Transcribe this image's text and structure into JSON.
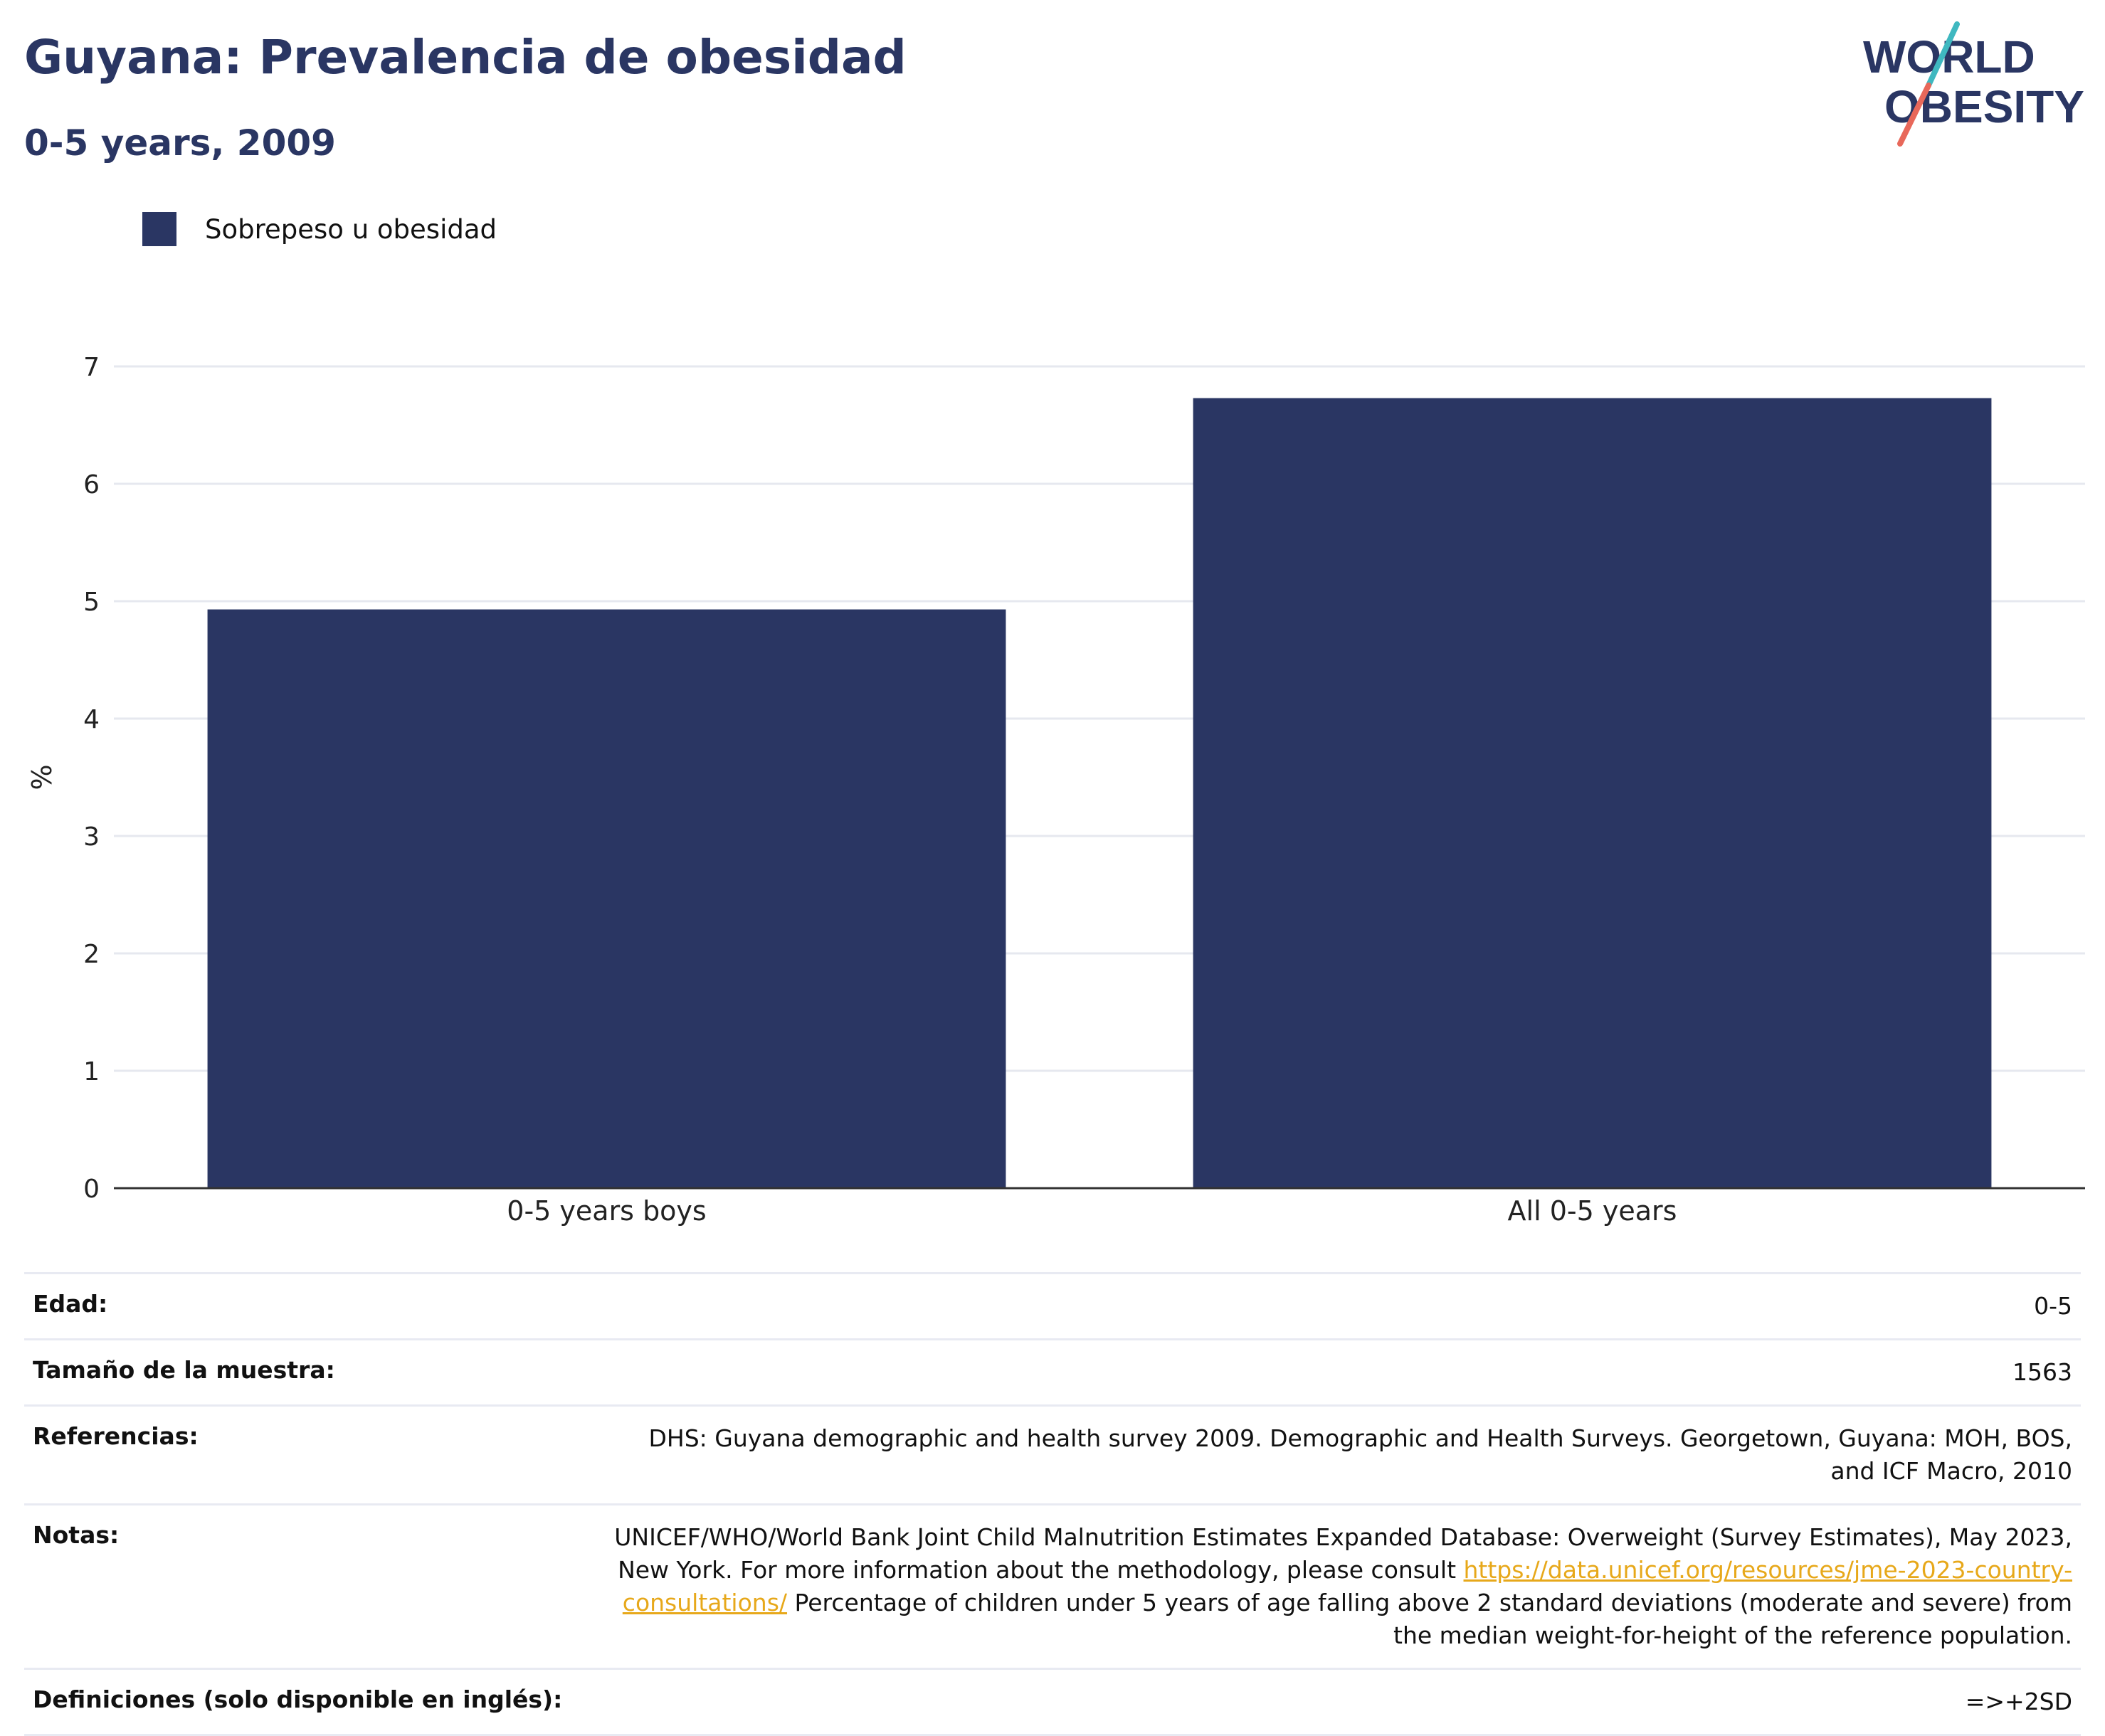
{
  "header": {
    "title": "Guyana: Prevalencia de obesidad",
    "subtitle": "0-5 years, 2009"
  },
  "logo": {
    "line1": "WORLD",
    "line2": "OBESITY",
    "colors": {
      "navy": "#2a3663",
      "teal": "#3fb8c0",
      "coral": "#e8685a"
    }
  },
  "legend": {
    "label": "Sobrepeso u obesidad",
    "color": "#2a3663"
  },
  "chart_data": {
    "type": "bar",
    "categories": [
      "0-5 years boys",
      "All 0-5 years"
    ],
    "series": [
      {
        "name": "Sobrepeso u obesidad",
        "values": [
          4.93,
          6.73
        ],
        "color": "#2a3663"
      }
    ],
    "ylabel": "%",
    "ylim": [
      0,
      7
    ],
    "yticks": [
      0,
      1,
      2,
      3,
      4,
      5,
      6,
      7
    ],
    "grid": true
  },
  "info": {
    "age_label": "Edad:",
    "age_value": "0-5",
    "sample_label": "Tamaño de la muestra:",
    "sample_value": "1563",
    "refs_label": "Referencias:",
    "refs_value": "DHS: Guyana demographic and health survey 2009. Demographic and Health Surveys. Georgetown, Guyana: MOH, BOS, and ICF Macro, 2010",
    "notes_label": "Notas:",
    "notes_part1": "UNICEF/WHO/World Bank Joint Child Malnutrition Estimates Expanded Database: Overweight (Survey Estimates), May 2023, New York. For more information about the methodology, please consult ",
    "notes_link": "https://data.unicef.org/resources/jme-2023-country-consultations/",
    "notes_part2": " Percentage of children under 5 years of age falling above 2 standard deviations (moderate and severe) from the median weight-for-height of the reference population.",
    "defs_label": "Definiciones (solo disponible en inglés):",
    "defs_value": "=>+2SD"
  }
}
